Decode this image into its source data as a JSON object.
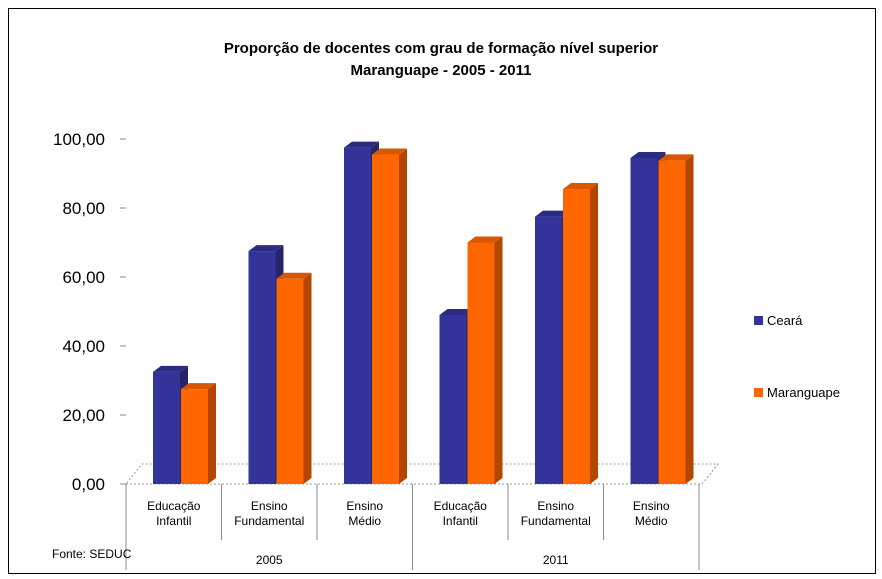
{
  "chart_data": {
    "type": "bar",
    "title": "Proporção de docentes com grau de formação nível superior",
    "subtitle": "Maranguape - 2005 - 2011",
    "groups": [
      {
        "label": "2005",
        "categories": [
          [
            "Educação",
            "Infantil"
          ],
          [
            "Ensino",
            "Fundamental"
          ],
          [
            "Ensino",
            "Médio"
          ]
        ]
      },
      {
        "label": "2011",
        "categories": [
          [
            "Educação",
            "Infantil"
          ],
          [
            "Ensino",
            "Fundamental"
          ],
          [
            "Ensino",
            "Médio"
          ]
        ]
      }
    ],
    "series": [
      {
        "name": "Ceará",
        "color": "#333399",
        "values": [
          32.5,
          67.5,
          97.5,
          49,
          77.5,
          94.5
        ]
      },
      {
        "name": "Maranguape",
        "color": "#ff6600",
        "values": [
          27.5,
          59.5,
          95.5,
          70,
          85.5,
          93.8
        ]
      }
    ],
    "yticks": [
      "0,00",
      "20,00",
      "40,00",
      "60,00",
      "80,00",
      "100,00"
    ],
    "ylim": [
      0,
      100
    ],
    "legend_position": "right",
    "source": "Fonte: SEDUC"
  }
}
